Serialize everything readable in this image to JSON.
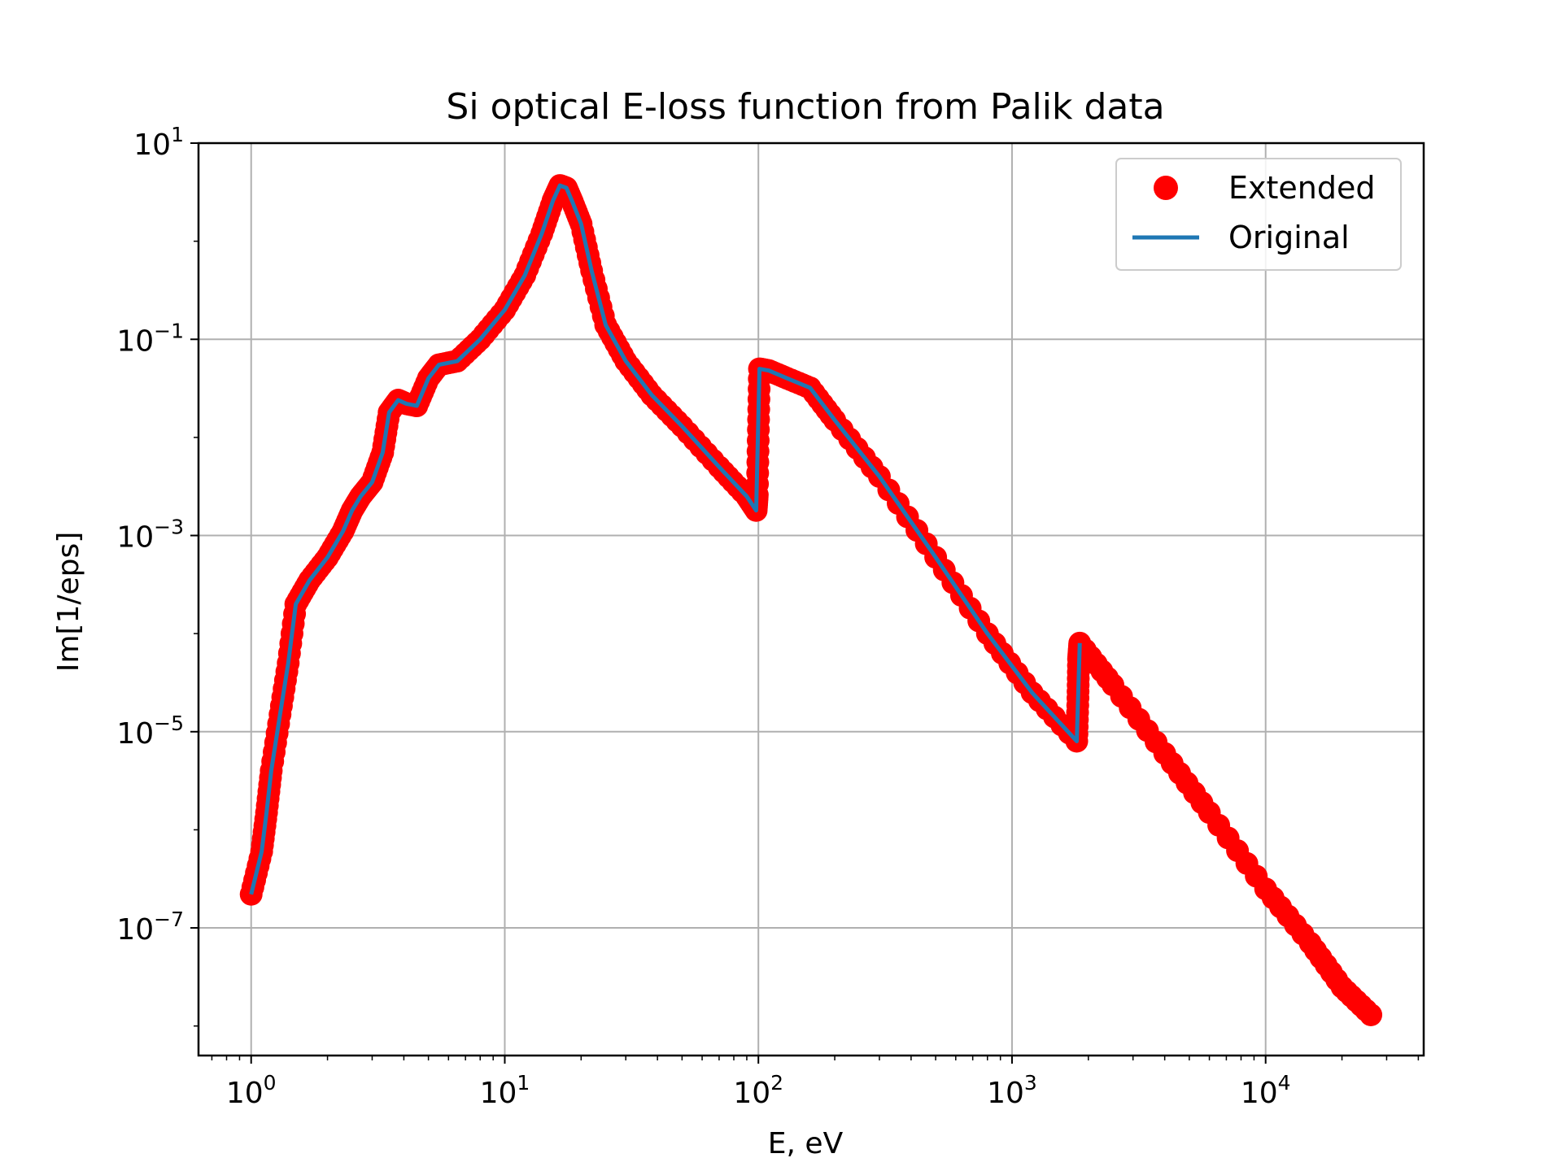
{
  "chart_data": {
    "type": "line",
    "title": "Si optical E-loss function from Palik data",
    "xlabel": "E, eV",
    "ylabel": "Im[1/eps]",
    "x_scale": "log",
    "y_scale": "log",
    "xlim": [
      0.62,
      42000
    ],
    "ylim": [
      5e-09,
      10
    ],
    "x_ticks": [
      {
        "value": 1,
        "base": "10",
        "exp": "0"
      },
      {
        "value": 10,
        "base": "10",
        "exp": "1"
      },
      {
        "value": 100,
        "base": "10",
        "exp": "2"
      },
      {
        "value": 1000,
        "base": "10",
        "exp": "3"
      },
      {
        "value": 10000,
        "base": "10",
        "exp": "4"
      }
    ],
    "y_ticks": [
      {
        "value": 10,
        "base": "10",
        "exp": "1"
      },
      {
        "value": 0.1,
        "base": "10",
        "exp": "−1"
      },
      {
        "value": 0.001,
        "base": "10",
        "exp": "−3"
      },
      {
        "value": 1e-05,
        "base": "10",
        "exp": "−5"
      },
      {
        "value": 1e-07,
        "base": "10",
        "exp": "−7"
      }
    ],
    "grid": true,
    "legend_position": "top-right",
    "series": [
      {
        "name": "Extended",
        "style": "markers",
        "color": "#ff0000",
        "points": [
          [
            1.0,
            2.2e-07
          ],
          [
            1.1,
            6e-07
          ],
          [
            1.15,
            1.5e-06
          ],
          [
            1.2,
            4e-06
          ],
          [
            1.3,
            1.5e-05
          ],
          [
            1.4,
            5e-05
          ],
          [
            1.5,
            0.0002
          ],
          [
            1.7,
            0.00035
          ],
          [
            2.0,
            0.0006
          ],
          [
            2.3,
            0.0011
          ],
          [
            2.5,
            0.0018
          ],
          [
            2.7,
            0.0025
          ],
          [
            3.0,
            0.0035
          ],
          [
            3.3,
            0.007
          ],
          [
            3.5,
            0.018
          ],
          [
            3.8,
            0.024
          ],
          [
            4.1,
            0.022
          ],
          [
            4.5,
            0.021
          ],
          [
            5.0,
            0.04
          ],
          [
            5.5,
            0.055
          ],
          [
            6.5,
            0.06
          ],
          [
            8.0,
            0.1
          ],
          [
            10.0,
            0.2
          ],
          [
            12.0,
            0.45
          ],
          [
            14.0,
            1.2
          ],
          [
            15.5,
            2.6
          ],
          [
            16.5,
            3.7
          ],
          [
            17.5,
            3.5
          ],
          [
            18.5,
            2.5
          ],
          [
            20.0,
            1.5
          ],
          [
            22.0,
            0.5
          ],
          [
            25.0,
            0.14
          ],
          [
            30.0,
            0.06
          ],
          [
            38.0,
            0.027
          ],
          [
            50.0,
            0.013
          ],
          [
            70.0,
            0.005
          ],
          [
            90.0,
            0.0025
          ],
          [
            98.0,
            0.0018
          ],
          [
            99.0,
            0.0026
          ],
          [
            100.0,
            0.012
          ],
          [
            101.0,
            0.05
          ],
          [
            110.0,
            0.048
          ],
          [
            130.0,
            0.04
          ],
          [
            160.0,
            0.032
          ],
          [
            200.0,
            0.015
          ],
          [
            300.0,
            0.004
          ],
          [
            500.0,
            0.0006
          ],
          [
            800.0,
            0.0001
          ],
          [
            1200.0,
            2.5e-05
          ],
          [
            1800.0,
            8e-06
          ],
          [
            1820.0,
            2.2e-05
          ],
          [
            1830.0,
            5.5e-05
          ],
          [
            1850.0,
            8e-05
          ],
          [
            2500.0,
            3e-05
          ],
          [
            4000.0,
            6e-06
          ],
          [
            6000.0,
            1.5e-06
          ],
          [
            10000.0,
            2.5e-07
          ],
          [
            15000.0,
            7e-08
          ],
          [
            20000.0,
            2.5e-08
          ],
          [
            26000.0,
            1.3e-08
          ]
        ]
      },
      {
        "name": "Original",
        "style": "line",
        "color": "#1f77b4",
        "points": [
          [
            1.0,
            2.2e-07
          ],
          [
            1.1,
            6e-07
          ],
          [
            1.15,
            1.5e-06
          ],
          [
            1.2,
            4e-06
          ],
          [
            1.3,
            1.5e-05
          ],
          [
            1.4,
            5e-05
          ],
          [
            1.5,
            0.0002
          ],
          [
            1.7,
            0.00035
          ],
          [
            2.0,
            0.0006
          ],
          [
            2.3,
            0.0011
          ],
          [
            2.5,
            0.0018
          ],
          [
            2.7,
            0.0025
          ],
          [
            3.0,
            0.0035
          ],
          [
            3.3,
            0.007
          ],
          [
            3.5,
            0.018
          ],
          [
            3.8,
            0.024
          ],
          [
            4.1,
            0.022
          ],
          [
            4.5,
            0.021
          ],
          [
            5.0,
            0.04
          ],
          [
            5.5,
            0.055
          ],
          [
            6.5,
            0.06
          ],
          [
            8.0,
            0.1
          ],
          [
            10.0,
            0.2
          ],
          [
            12.0,
            0.45
          ],
          [
            14.0,
            1.2
          ],
          [
            15.5,
            2.6
          ],
          [
            16.5,
            3.7
          ],
          [
            17.5,
            3.5
          ],
          [
            18.5,
            2.5
          ],
          [
            20.0,
            1.5
          ],
          [
            22.0,
            0.5
          ],
          [
            25.0,
            0.14
          ],
          [
            30.0,
            0.06
          ],
          [
            38.0,
            0.027
          ],
          [
            50.0,
            0.013
          ],
          [
            70.0,
            0.005
          ],
          [
            90.0,
            0.0025
          ],
          [
            98.0,
            0.0018
          ],
          [
            101.0,
            0.05
          ],
          [
            110.0,
            0.048
          ],
          [
            130.0,
            0.04
          ],
          [
            160.0,
            0.032
          ],
          [
            200.0,
            0.015
          ],
          [
            300.0,
            0.004
          ],
          [
            500.0,
            0.0006
          ],
          [
            800.0,
            0.0001
          ],
          [
            1200.0,
            2.5e-05
          ],
          [
            1800.0,
            8e-06
          ],
          [
            1850.0,
            8e-05
          ]
        ]
      }
    ]
  }
}
